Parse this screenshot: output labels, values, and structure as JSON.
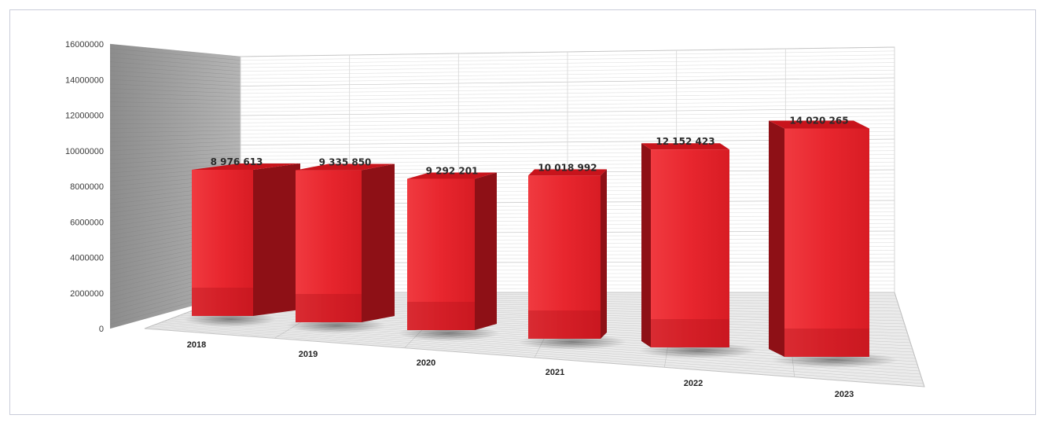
{
  "chart_data": {
    "type": "bar",
    "style": "3d-column",
    "categories": [
      "2018",
      "2019",
      "2020",
      "2021",
      "2022",
      "2023"
    ],
    "values": [
      8976613,
      9335850,
      9292201,
      10018992,
      12152423,
      14020265
    ],
    "data_labels": [
      "8 976 613",
      "9 335 850",
      "9 292 201",
      "10 018 992",
      "12 152 423",
      "14 020 265"
    ],
    "y_ticks": [
      "0",
      "2000000",
      "4000000",
      "6000000",
      "8000000",
      "10000000",
      "12000000",
      "14000000",
      "16000000"
    ],
    "ylim": [
      0,
      16000000
    ],
    "title": "",
    "xlabel": "",
    "ylabel": "",
    "grid": true,
    "legend": "none",
    "colors": {
      "bar": "#e8262e",
      "bar_side": "#8e1016",
      "wall": "#9a9a9a",
      "grid": "#d4d4d4"
    }
  }
}
